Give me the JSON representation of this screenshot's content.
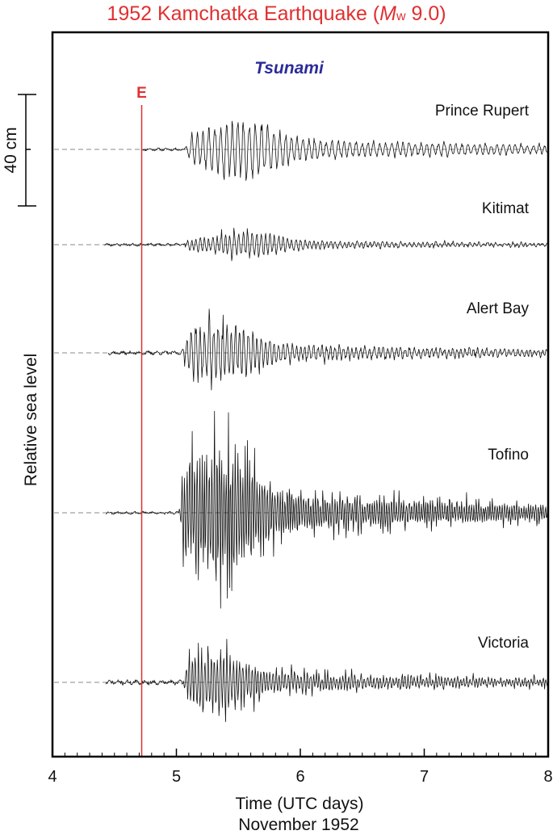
{
  "title": {
    "prefix": "1952 Kamchatka Earthquake (",
    "mw_m": "M",
    "mw_w": "w",
    "suffix": " 9.0)"
  },
  "caption": "November  1952",
  "chart_data": {
    "type": "line",
    "title": "1952 Kamchatka Earthquake (Mw 9.0)",
    "xlabel": "Time (UTC days)",
    "ylabel": "Relative sea  level",
    "xlim": [
      4,
      8
    ],
    "x_ticks": [
      4,
      5,
      6,
      7,
      8
    ],
    "x_minor_step": 0.1,
    "annotation": "Tsunami",
    "event_marker": {
      "label": "E",
      "x": 4.72
    },
    "scale_bar": {
      "label": "40 cm",
      "value_cm": 40
    },
    "grid": false,
    "colors": {
      "title": "#e03030",
      "event": "#e03030",
      "annotation": "#2b2b9a",
      "trace": "#111111",
      "baseline": "#888888"
    },
    "series": [
      {
        "name": "Prince Rupert",
        "start": 4.72,
        "arrival": 5.07,
        "peak_amplitude_cm": 24,
        "noise_cm": 1.5,
        "period_days": 0.048,
        "peak_time": 5.55,
        "decay": 0.9,
        "spikiness": 0.15,
        "seed": 11
      },
      {
        "name": "Kitimat",
        "start": 4.42,
        "arrival": 5.05,
        "peak_amplitude_cm": 10,
        "noise_cm": 1.5,
        "period_days": 0.036,
        "peak_time": 5.6,
        "decay": 1.4,
        "spikiness": 0.4,
        "seed": 23
      },
      {
        "name": "Alert Bay",
        "start": 4.45,
        "arrival": 5.04,
        "peak_amplitude_cm": 22,
        "noise_cm": 2,
        "period_days": 0.036,
        "peak_time": 5.35,
        "decay": 1.3,
        "spikiness": 0.5,
        "seed": 37
      },
      {
        "name": "Tofino",
        "start": 4.43,
        "arrival": 5.02,
        "peak_amplitude_cm": 48,
        "noise_cm": 1.5,
        "period_days": 0.02,
        "peak_time": 5.35,
        "decay": 1.2,
        "spikiness": 0.85,
        "seed": 53
      },
      {
        "name": "Victoria",
        "start": 4.43,
        "arrival": 5.05,
        "peak_amplitude_cm": 22,
        "noise_cm": 2.5,
        "period_days": 0.025,
        "peak_time": 5.3,
        "decay": 1.1,
        "spikiness": 0.7,
        "seed": 71
      }
    ]
  }
}
